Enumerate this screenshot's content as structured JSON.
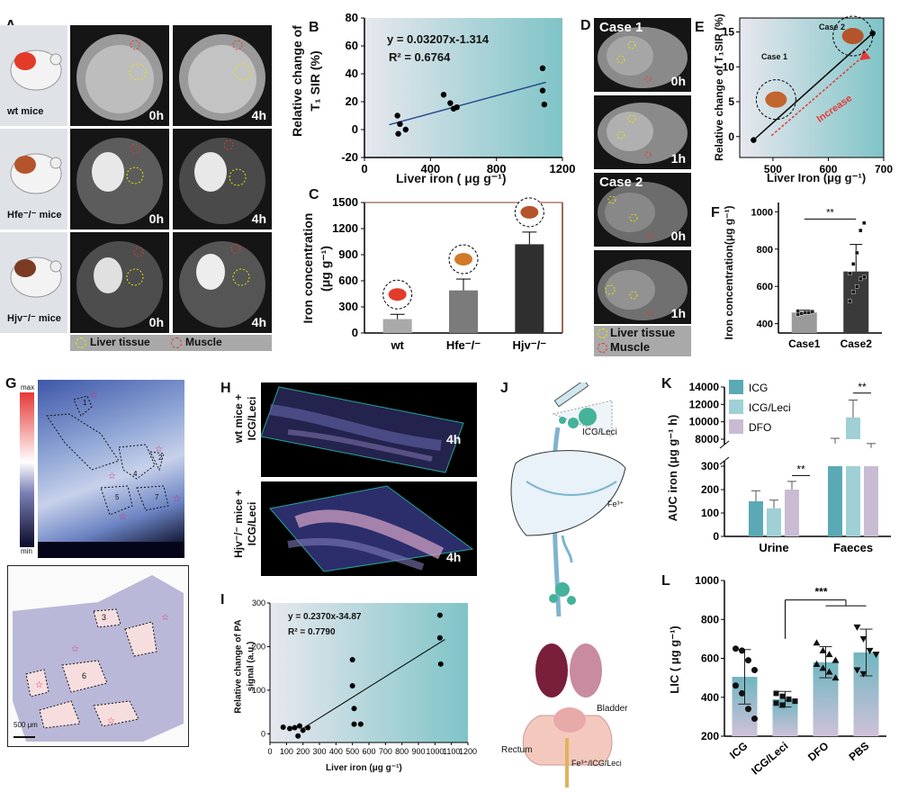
{
  "panel_letters": {
    "A": "A",
    "B": "B",
    "C": "C",
    "D": "D",
    "E": "E",
    "F": "F",
    "G": "G",
    "H": "H",
    "I": "I",
    "J": "J",
    "K": "K",
    "L": "L"
  },
  "panelA": {
    "rows": [
      {
        "mouse_label": "wt mice",
        "t0": "0h",
        "t1": "4h"
      },
      {
        "mouse_label": "Hfe⁻/⁻ mice",
        "t0": "0h",
        "t1": "4h"
      },
      {
        "mouse_label": "Hjv⁻/⁻ mice",
        "t0": "0h",
        "t1": "4h"
      }
    ],
    "legend_liver": "Liver tissue",
    "legend_muscle": "Muscle"
  },
  "panelB": {
    "equation": "y = 0.03207x-1.314",
    "r2": "R² = 0.6764",
    "xlabel": "Liver iron ( μg g⁻¹)",
    "ylabel_line1": "Relative change of",
    "ylabel_line2": "T₁ SIR (%)"
  },
  "panelC": {
    "ylabel_line1": "Iron concentration",
    "ylabel_line2": "(μg g⁻¹)"
  },
  "panelD": {
    "case1": "Case 1",
    "case2": "Case 2",
    "labels": [
      "0h",
      "1h",
      "0h",
      "1h"
    ],
    "legend_liver": "Liver tissue",
    "legend_muscle": "Muscle"
  },
  "panelE": {
    "ylabel": "Relative change of T₁SIR (%)",
    "xlabel": "Liver Iron (μg g⁻¹)",
    "case1": "Case 1",
    "case2": "Case 2",
    "arrow_text": "Increase"
  },
  "panelF": {
    "ylabel": "Iron concentration(μg g⁻¹)",
    "sig": "**"
  },
  "panelG": {
    "max": "max",
    "min": "min",
    "scalebar": "500 μm",
    "region_numbers": [
      "1",
      "2",
      "3",
      "4",
      "5",
      "6",
      "7"
    ]
  },
  "panelH": {
    "row1_label_line1": "wt mice +",
    "row1_label_line2": "ICG/Leci",
    "row2_label_line1": "Hjv⁻/⁻ mice +",
    "row2_label_line2": "ICG/Leci",
    "time1": "4h",
    "time2": "4h"
  },
  "panelI": {
    "equation": "y = 0.2370x-34.87",
    "r2": "R² = 0.7790",
    "xlabel": "Liver iron (μg g⁻¹)",
    "ylabel_line1": "Relative change of PA",
    "ylabel_line2": "signal (a.u.)"
  },
  "panelJ": {
    "icg_leci": "ICG/Leci",
    "fe3": "Fe³⁺",
    "bladder": "Bladder",
    "rectum": "Rectum",
    "fe_icg_leci": "Fe³⁺/ICG/Leci"
  },
  "panelK": {
    "ylabel": "AUC iron (μg g⁻¹ h)",
    "sig1": "**",
    "sig2": "**"
  },
  "panelL": {
    "ylabel": "LIC ( μg g⁻¹)",
    "sig": "***"
  },
  "colors": {
    "teal": "#5aa9b5",
    "lavender": "#c9bcd2",
    "grad_start": "#e7e8ee",
    "grad_end": "#7fc4c7",
    "red": "#e53935",
    "liver": "#b5542a"
  },
  "chart_data": [
    {
      "id": "B",
      "type": "scatter",
      "xlim": [
        0,
        1200
      ],
      "ylim": [
        -20,
        80
      ],
      "xticks": [
        0,
        400,
        800,
        1200
      ],
      "yticks": [
        -20,
        0,
        20,
        40,
        60,
        80
      ],
      "points": [
        [
          200,
          10
        ],
        [
          205,
          -3
        ],
        [
          215,
          4
        ],
        [
          250,
          0
        ],
        [
          480,
          25
        ],
        [
          520,
          19
        ],
        [
          540,
          15
        ],
        [
          560,
          16
        ],
        [
          1080,
          44
        ],
        [
          1080,
          28
        ],
        [
          1090,
          18
        ]
      ],
      "fit": {
        "slope": 0.03207,
        "intercept": -1.314
      }
    },
    {
      "id": "C",
      "type": "bar",
      "categories": [
        "wt",
        "Hfe⁻/⁻",
        "Hjv⁻/⁻"
      ],
      "values": [
        160,
        490,
        1020
      ],
      "errors": [
        55,
        130,
        140
      ],
      "ylim": [
        0,
        1500
      ],
      "yticks": [
        0,
        300,
        600,
        900,
        1200,
        1500
      ],
      "colors": [
        "#a9a9a9",
        "#7b7b7b",
        "#2f2f2f"
      ]
    },
    {
      "id": "E",
      "type": "line",
      "xlim": [
        440,
        700
      ],
      "ylim": [
        -3,
        17
      ],
      "xticks": [
        500,
        600,
        700
      ],
      "yticks": [
        0,
        5,
        10,
        15
      ],
      "points": [
        [
          465,
          -0.5
        ],
        [
          680,
          14.8
        ]
      ]
    },
    {
      "id": "F",
      "type": "bar",
      "categories": [
        "Case1",
        "Case2"
      ],
      "values": [
        460,
        680
      ],
      "errors": [
        12,
        145
      ],
      "ylim": [
        350,
        1050
      ],
      "yticks": [
        400,
        600,
        800,
        1000
      ],
      "points": {
        "Case1": [
          450,
          455,
          460,
          460,
          465,
          468
        ],
        "Case2": [
          520,
          570,
          600,
          640,
          650,
          670,
          720,
          780,
          900,
          940
        ]
      }
    },
    {
      "id": "I",
      "type": "scatter",
      "xlim": [
        0,
        1200
      ],
      "ylim": [
        -20,
        300
      ],
      "xticks": [
        0,
        100,
        200,
        300,
        400,
        500,
        600,
        700,
        800,
        900,
        1000,
        1100,
        1200
      ],
      "yticks": [
        0,
        100,
        200,
        300
      ],
      "points": [
        [
          80,
          15
        ],
        [
          120,
          12
        ],
        [
          150,
          14
        ],
        [
          170,
          -5
        ],
        [
          180,
          18
        ],
        [
          200,
          8
        ],
        [
          230,
          14
        ],
        [
          500,
          170
        ],
        [
          500,
          110
        ],
        [
          510,
          58
        ],
        [
          510,
          22
        ],
        [
          550,
          22
        ],
        [
          1030,
          272
        ],
        [
          1030,
          220
        ],
        [
          1035,
          160
        ]
      ],
      "fit": {
        "slope": 0.237,
        "intercept": -34.87
      }
    },
    {
      "id": "K",
      "type": "bar",
      "categories": [
        "Urine",
        "Faeces"
      ],
      "series": [
        {
          "name": "ICG",
          "values": [
            150,
            7500
          ],
          "errors": [
            45,
            600
          ]
        },
        {
          "name": "ICG/Leci",
          "values": [
            120,
            10500
          ],
          "errors": [
            35,
            2000
          ]
        },
        {
          "name": "DFO",
          "values": [
            200,
            7000
          ],
          "errors": [
            35,
            500
          ]
        }
      ],
      "yticks_low": [
        0,
        100,
        200,
        300
      ],
      "yticks_high": [
        8000,
        10000,
        12000,
        14000
      ],
      "axis_break": true
    },
    {
      "id": "L",
      "type": "bar",
      "categories": [
        "ICG",
        "ICG/Leci",
        "DFO",
        "PBS"
      ],
      "values": [
        505,
        390,
        580,
        630
      ],
      "errors": [
        140,
        40,
        80,
        120
      ],
      "ylim": [
        200,
        1000
      ],
      "yticks": [
        200,
        400,
        600,
        800,
        1000
      ],
      "points": {
        "ICG": [
          650,
          640,
          590,
          540,
          460,
          420,
          340,
          290
        ],
        "ICG/Leci": [
          420,
          405,
          390,
          380,
          370,
          360
        ],
        "DFO": [
          680,
          640,
          620,
          590,
          570,
          550,
          530,
          500
        ],
        "PBS": [
          760,
          700,
          640,
          620,
          540,
          520
        ]
      }
    }
  ]
}
